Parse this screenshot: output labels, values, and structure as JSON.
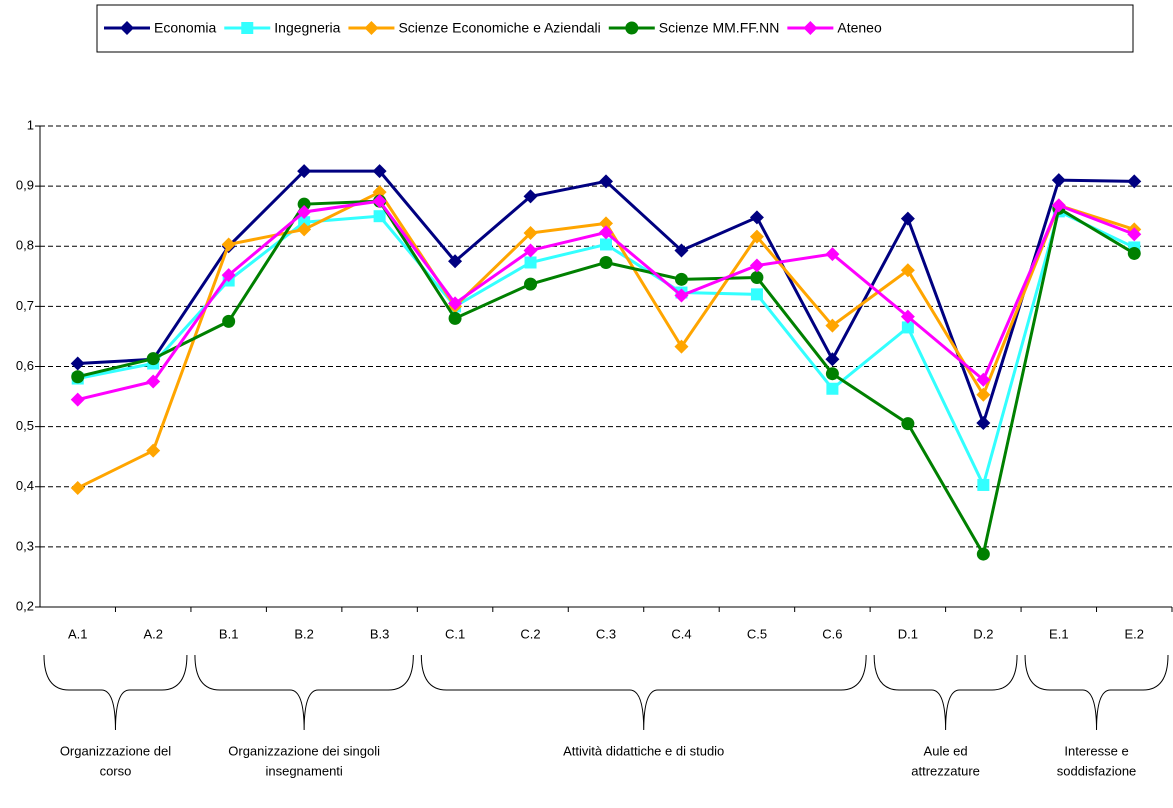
{
  "chart_data": {
    "type": "line",
    "categories": [
      "A.1",
      "A.2",
      "B.1",
      "B.2",
      "B.3",
      "C.1",
      "C.2",
      "C.3",
      "C.4",
      "C.5",
      "C.6",
      "D.1",
      "D.2",
      "E.1",
      "E.2"
    ],
    "series": [
      {
        "name": "Economia",
        "color": "#000080",
        "marker": "diamond",
        "values": [
          0.605,
          0.612,
          0.8,
          0.925,
          0.925,
          0.775,
          0.883,
          0.908,
          0.793,
          0.848,
          0.612,
          0.846,
          0.506,
          0.91,
          0.908
        ]
      },
      {
        "name": "Ingegneria",
        "color": "#33ffff",
        "marker": "square",
        "values": [
          0.58,
          0.605,
          0.743,
          0.84,
          0.85,
          0.7,
          0.773,
          0.803,
          0.723,
          0.72,
          0.563,
          0.665,
          0.403,
          0.858,
          0.798
        ]
      },
      {
        "name": "Scienze Economiche e Aziendali",
        "color": "#ffa500",
        "marker": "diamond",
        "values": [
          0.398,
          0.46,
          0.803,
          0.828,
          0.89,
          0.7,
          0.822,
          0.838,
          0.633,
          0.816,
          0.668,
          0.76,
          0.553,
          0.868,
          0.828
        ]
      },
      {
        "name": "Scienze MM.FF.NN",
        "color": "#008000",
        "marker": "circle",
        "values": [
          0.583,
          0.613,
          0.675,
          0.87,
          0.875,
          0.68,
          0.737,
          0.773,
          0.745,
          0.748,
          0.588,
          0.505,
          0.288,
          0.863,
          0.788
        ]
      },
      {
        "name": "Ateneo",
        "color": "#ff00ff",
        "marker": "diamond",
        "values": [
          0.545,
          0.575,
          0.752,
          0.857,
          0.875,
          0.705,
          0.793,
          0.823,
          0.718,
          0.768,
          0.787,
          0.683,
          0.578,
          0.868,
          0.82
        ]
      }
    ],
    "ylim": [
      0.2,
      1
    ],
    "yticks": [
      {
        "value": 0.2,
        "label": "0,2"
      },
      {
        "value": 0.3,
        "label": "0,3"
      },
      {
        "value": 0.4,
        "label": "0,4"
      },
      {
        "value": 0.5,
        "label": "0,5"
      },
      {
        "value": 0.6,
        "label": "0,6"
      },
      {
        "value": 0.7,
        "label": "0,7"
      },
      {
        "value": 0.8,
        "label": "0,8"
      },
      {
        "value": 0.9,
        "label": "0,9"
      },
      {
        "value": 1,
        "label": "1"
      }
    ],
    "grid": true,
    "legend": "top",
    "groups": [
      {
        "label": [
          "Organizzazione del",
          "corso"
        ],
        "categories": [
          "A.1",
          "A.2"
        ]
      },
      {
        "label": [
          "Organizzazione dei singoli",
          "insegnamenti"
        ],
        "categories": [
          "B.1",
          "B.2",
          "B.3"
        ]
      },
      {
        "label": [
          "Attività didattiche e di studio"
        ],
        "categories": [
          "C.1",
          "C.2",
          "C.3",
          "C.4",
          "C.5",
          "C.6"
        ]
      },
      {
        "label": [
          "Aule ed",
          "attrezzature"
        ],
        "categories": [
          "D.1",
          "D.2"
        ]
      },
      {
        "label": [
          "Interesse e",
          "soddisfazione"
        ],
        "categories": [
          "E.1",
          "E.2"
        ]
      }
    ]
  }
}
